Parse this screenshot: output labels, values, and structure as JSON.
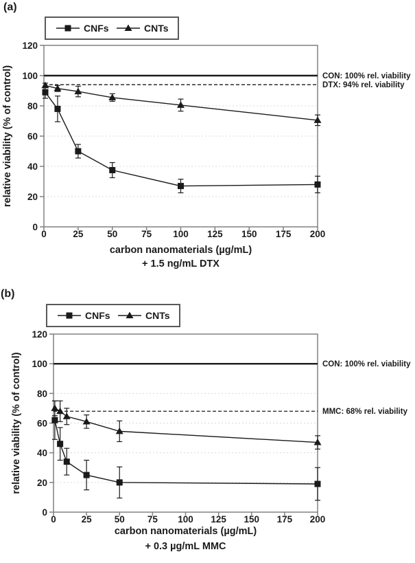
{
  "figure": {
    "background": "#ffffff"
  },
  "colors": {
    "axis": "#808080",
    "data": "#1a1a1a",
    "grid": "#d9d9d9",
    "legend_border": "#595959",
    "text": "#1a1a1a"
  },
  "chart_data": [
    {
      "type": "line",
      "panel_label": "(a)",
      "title": "",
      "xlabel": "carbon nanomaterials (µg/mL)",
      "xlabel_line2": "+ 1.5 ng/mL DTX",
      "ylabel": "relative viability (% of control)",
      "xlim": [
        0,
        200
      ],
      "ylim": [
        0,
        120
      ],
      "xticks": [
        0,
        25,
        50,
        75,
        100,
        125,
        150,
        175,
        200
      ],
      "yticks": [
        0,
        20,
        40,
        60,
        80,
        100,
        120
      ],
      "gridlines_y": [
        20,
        40,
        60,
        80
      ],
      "legend_position": "top",
      "series": [
        {
          "name": "CNFs",
          "marker": "square",
          "x": [
            1,
            10,
            25,
            50,
            100,
            200
          ],
          "y": [
            89,
            78,
            50,
            37.5,
            27,
            28
          ],
          "yerr": [
            4,
            8.5,
            4.5,
            5,
            4.5,
            5.5
          ]
        },
        {
          "name": "CNTs",
          "marker": "triangle",
          "x": [
            1,
            10,
            25,
            50,
            100,
            200
          ],
          "y": [
            93.5,
            91.5,
            89.5,
            85.5,
            80.5,
            70.5
          ],
          "yerr": [
            1.5,
            2,
            3.5,
            2.5,
            4,
            3.5
          ]
        }
      ],
      "reference_lines": [
        {
          "id": "con",
          "value": 100,
          "style": "solid",
          "label": "CON: 100% rel. viability"
        },
        {
          "id": "dtx",
          "value": 94,
          "style": "dashed",
          "label": "DTX: 94% rel. viability"
        }
      ]
    },
    {
      "type": "line",
      "panel_label": "(b)",
      "title": "",
      "xlabel": "carbon nanomaterials (µg/mL)",
      "xlabel_line2": "+ 0.3 µg/mL MMC",
      "ylabel": "relative viability (% of control)",
      "xlim": [
        0,
        200
      ],
      "ylim": [
        0,
        120
      ],
      "xticks": [
        0,
        25,
        50,
        75,
        100,
        125,
        150,
        175,
        200
      ],
      "yticks": [
        0,
        20,
        40,
        60,
        80,
        100,
        120
      ],
      "gridlines_y": [
        20,
        40,
        60,
        80
      ],
      "legend_position": "top",
      "series": [
        {
          "name": "CNFs",
          "marker": "square",
          "x": [
            1,
            5,
            10,
            25,
            50,
            200
          ],
          "y": [
            62,
            46,
            34,
            25,
            20,
            19
          ],
          "yerr": [
            13,
            11,
            9,
            10,
            10.5,
            11
          ]
        },
        {
          "name": "CNTs",
          "marker": "triangle",
          "x": [
            1,
            5,
            10,
            25,
            50,
            200
          ],
          "y": [
            70,
            68,
            64.5,
            61,
            54.5,
            47
          ],
          "yerr": [
            5,
            7,
            5.5,
            4.5,
            7,
            4.5
          ]
        }
      ],
      "reference_lines": [
        {
          "id": "con",
          "value": 100,
          "style": "solid",
          "label": "CON: 100% rel. viability"
        },
        {
          "id": "mmc",
          "value": 68,
          "style": "dashed",
          "label": "MMC: 68% rel. viability"
        }
      ]
    }
  ]
}
